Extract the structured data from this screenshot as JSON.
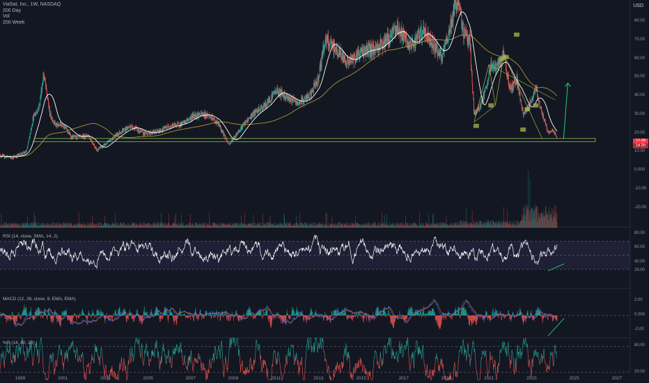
{
  "legend": {
    "title": "ViaSat, Inc., 1W, NASDAQ",
    "lines": [
      "200 Day",
      "Vol",
      "200 Week"
    ]
  },
  "unit": "USD",
  "price_badge": {
    "value": "17.08",
    "sub": "1d 2h"
  },
  "panes": {
    "rsi_label": "RSI (14, close, SMA, 14, 2)",
    "macd_label": "MACD (12, 26, close, 9, EMA, EMA)",
    "wr_label": "%R (14, 80, 20)"
  },
  "colors": {
    "background": "#131722",
    "up": "#26a69a",
    "down": "#ef5350",
    "ma_fast": "#ffffff",
    "ma_slow": "#c0a43a",
    "support": "#8bc34a",
    "arrow": "#2ecc71",
    "pattern": "#a6b84a",
    "macd": "#2962ff",
    "signal": "#ff6d00",
    "rsi": "#ffffff"
  },
  "chart_data": [
    {
      "type": "line",
      "pane": "price",
      "x_ticks": [
        "1999",
        "2001",
        "2003",
        "2005",
        "2007",
        "2009",
        "2011",
        "2013",
        "2015",
        "2017",
        "2019",
        "2021",
        "2023",
        "2025",
        "2027"
      ],
      "y_ticks": [
        "80.00",
        "70.00",
        "60.00",
        "50.00",
        "40.00",
        "30.00",
        "20.00",
        "10.00",
        "0.000",
        "-10.00",
        "-20.00"
      ],
      "ylim": [
        -25,
        90
      ],
      "keypoints": [
        {
          "x": 1998.0,
          "y": 8
        },
        {
          "x": 1998.6,
          "y": 7
        },
        {
          "x": 1999.3,
          "y": 10
        },
        {
          "x": 1999.6,
          "y": 28
        },
        {
          "x": 1999.9,
          "y": 35
        },
        {
          "x": 2000.1,
          "y": 52
        },
        {
          "x": 2000.4,
          "y": 30
        },
        {
          "x": 2000.7,
          "y": 24
        },
        {
          "x": 2001.0,
          "y": 25
        },
        {
          "x": 2001.4,
          "y": 18
        },
        {
          "x": 2001.8,
          "y": 18
        },
        {
          "x": 2002.2,
          "y": 19
        },
        {
          "x": 2002.6,
          "y": 11
        },
        {
          "x": 2003.0,
          "y": 14
        },
        {
          "x": 2003.6,
          "y": 20
        },
        {
          "x": 2004.2,
          "y": 24
        },
        {
          "x": 2004.8,
          "y": 20
        },
        {
          "x": 2005.5,
          "y": 21
        },
        {
          "x": 2006.0,
          "y": 24
        },
        {
          "x": 2006.6,
          "y": 25
        },
        {
          "x": 2007.2,
          "y": 30
        },
        {
          "x": 2007.8,
          "y": 30
        },
        {
          "x": 2008.3,
          "y": 25
        },
        {
          "x": 2008.8,
          "y": 14
        },
        {
          "x": 2009.3,
          "y": 22
        },
        {
          "x": 2009.9,
          "y": 30
        },
        {
          "x": 2010.5,
          "y": 35
        },
        {
          "x": 2011.0,
          "y": 43
        },
        {
          "x": 2011.5,
          "y": 40
        },
        {
          "x": 2012.0,
          "y": 36
        },
        {
          "x": 2012.6,
          "y": 40
        },
        {
          "x": 2013.0,
          "y": 50
        },
        {
          "x": 2013.3,
          "y": 70
        },
        {
          "x": 2013.8,
          "y": 65
        },
        {
          "x": 2014.4,
          "y": 58
        },
        {
          "x": 2015.0,
          "y": 64
        },
        {
          "x": 2015.6,
          "y": 65
        },
        {
          "x": 2016.2,
          "y": 70
        },
        {
          "x": 2016.7,
          "y": 77
        },
        {
          "x": 2017.3,
          "y": 66
        },
        {
          "x": 2017.9,
          "y": 75
        },
        {
          "x": 2018.4,
          "y": 68
        },
        {
          "x": 2018.8,
          "y": 60
        },
        {
          "x": 2019.2,
          "y": 78
        },
        {
          "x": 2019.5,
          "y": 92
        },
        {
          "x": 2019.8,
          "y": 75
        },
        {
          "x": 2020.1,
          "y": 70
        },
        {
          "x": 2020.3,
          "y": 30
        },
        {
          "x": 2020.6,
          "y": 35
        },
        {
          "x": 2020.9,
          "y": 45
        },
        {
          "x": 2021.1,
          "y": 57
        },
        {
          "x": 2021.4,
          "y": 55
        },
        {
          "x": 2021.7,
          "y": 62
        },
        {
          "x": 2022.0,
          "y": 43
        },
        {
          "x": 2022.3,
          "y": 50
        },
        {
          "x": 2022.6,
          "y": 30
        },
        {
          "x": 2022.9,
          "y": 35
        },
        {
          "x": 2023.2,
          "y": 45
        },
        {
          "x": 2023.5,
          "y": 30
        },
        {
          "x": 2023.8,
          "y": 20
        },
        {
          "x": 2024.0,
          "y": 22
        },
        {
          "x": 2024.2,
          "y": 17.08
        }
      ],
      "support_level": 16.5,
      "projection_arrow": {
        "from": [
          2024.5,
          17
        ],
        "to": [
          2024.7,
          47
        ]
      }
    },
    {
      "type": "line",
      "pane": "rsi",
      "y_ticks": [
        "80.00",
        "60.00",
        "40.00",
        "28.00"
      ],
      "ylim": [
        15,
        85
      ],
      "bands": [
        70,
        30
      ]
    },
    {
      "type": "bar",
      "pane": "macd",
      "y_ticks": [
        "2.00",
        "0.000",
        "-2.00"
      ],
      "ylim": [
        -4,
        3.5
      ]
    },
    {
      "type": "line",
      "pane": "williams_r",
      "y_ticks": [
        "80.00",
        "20.00"
      ],
      "ylim": [
        0,
        110
      ]
    }
  ]
}
